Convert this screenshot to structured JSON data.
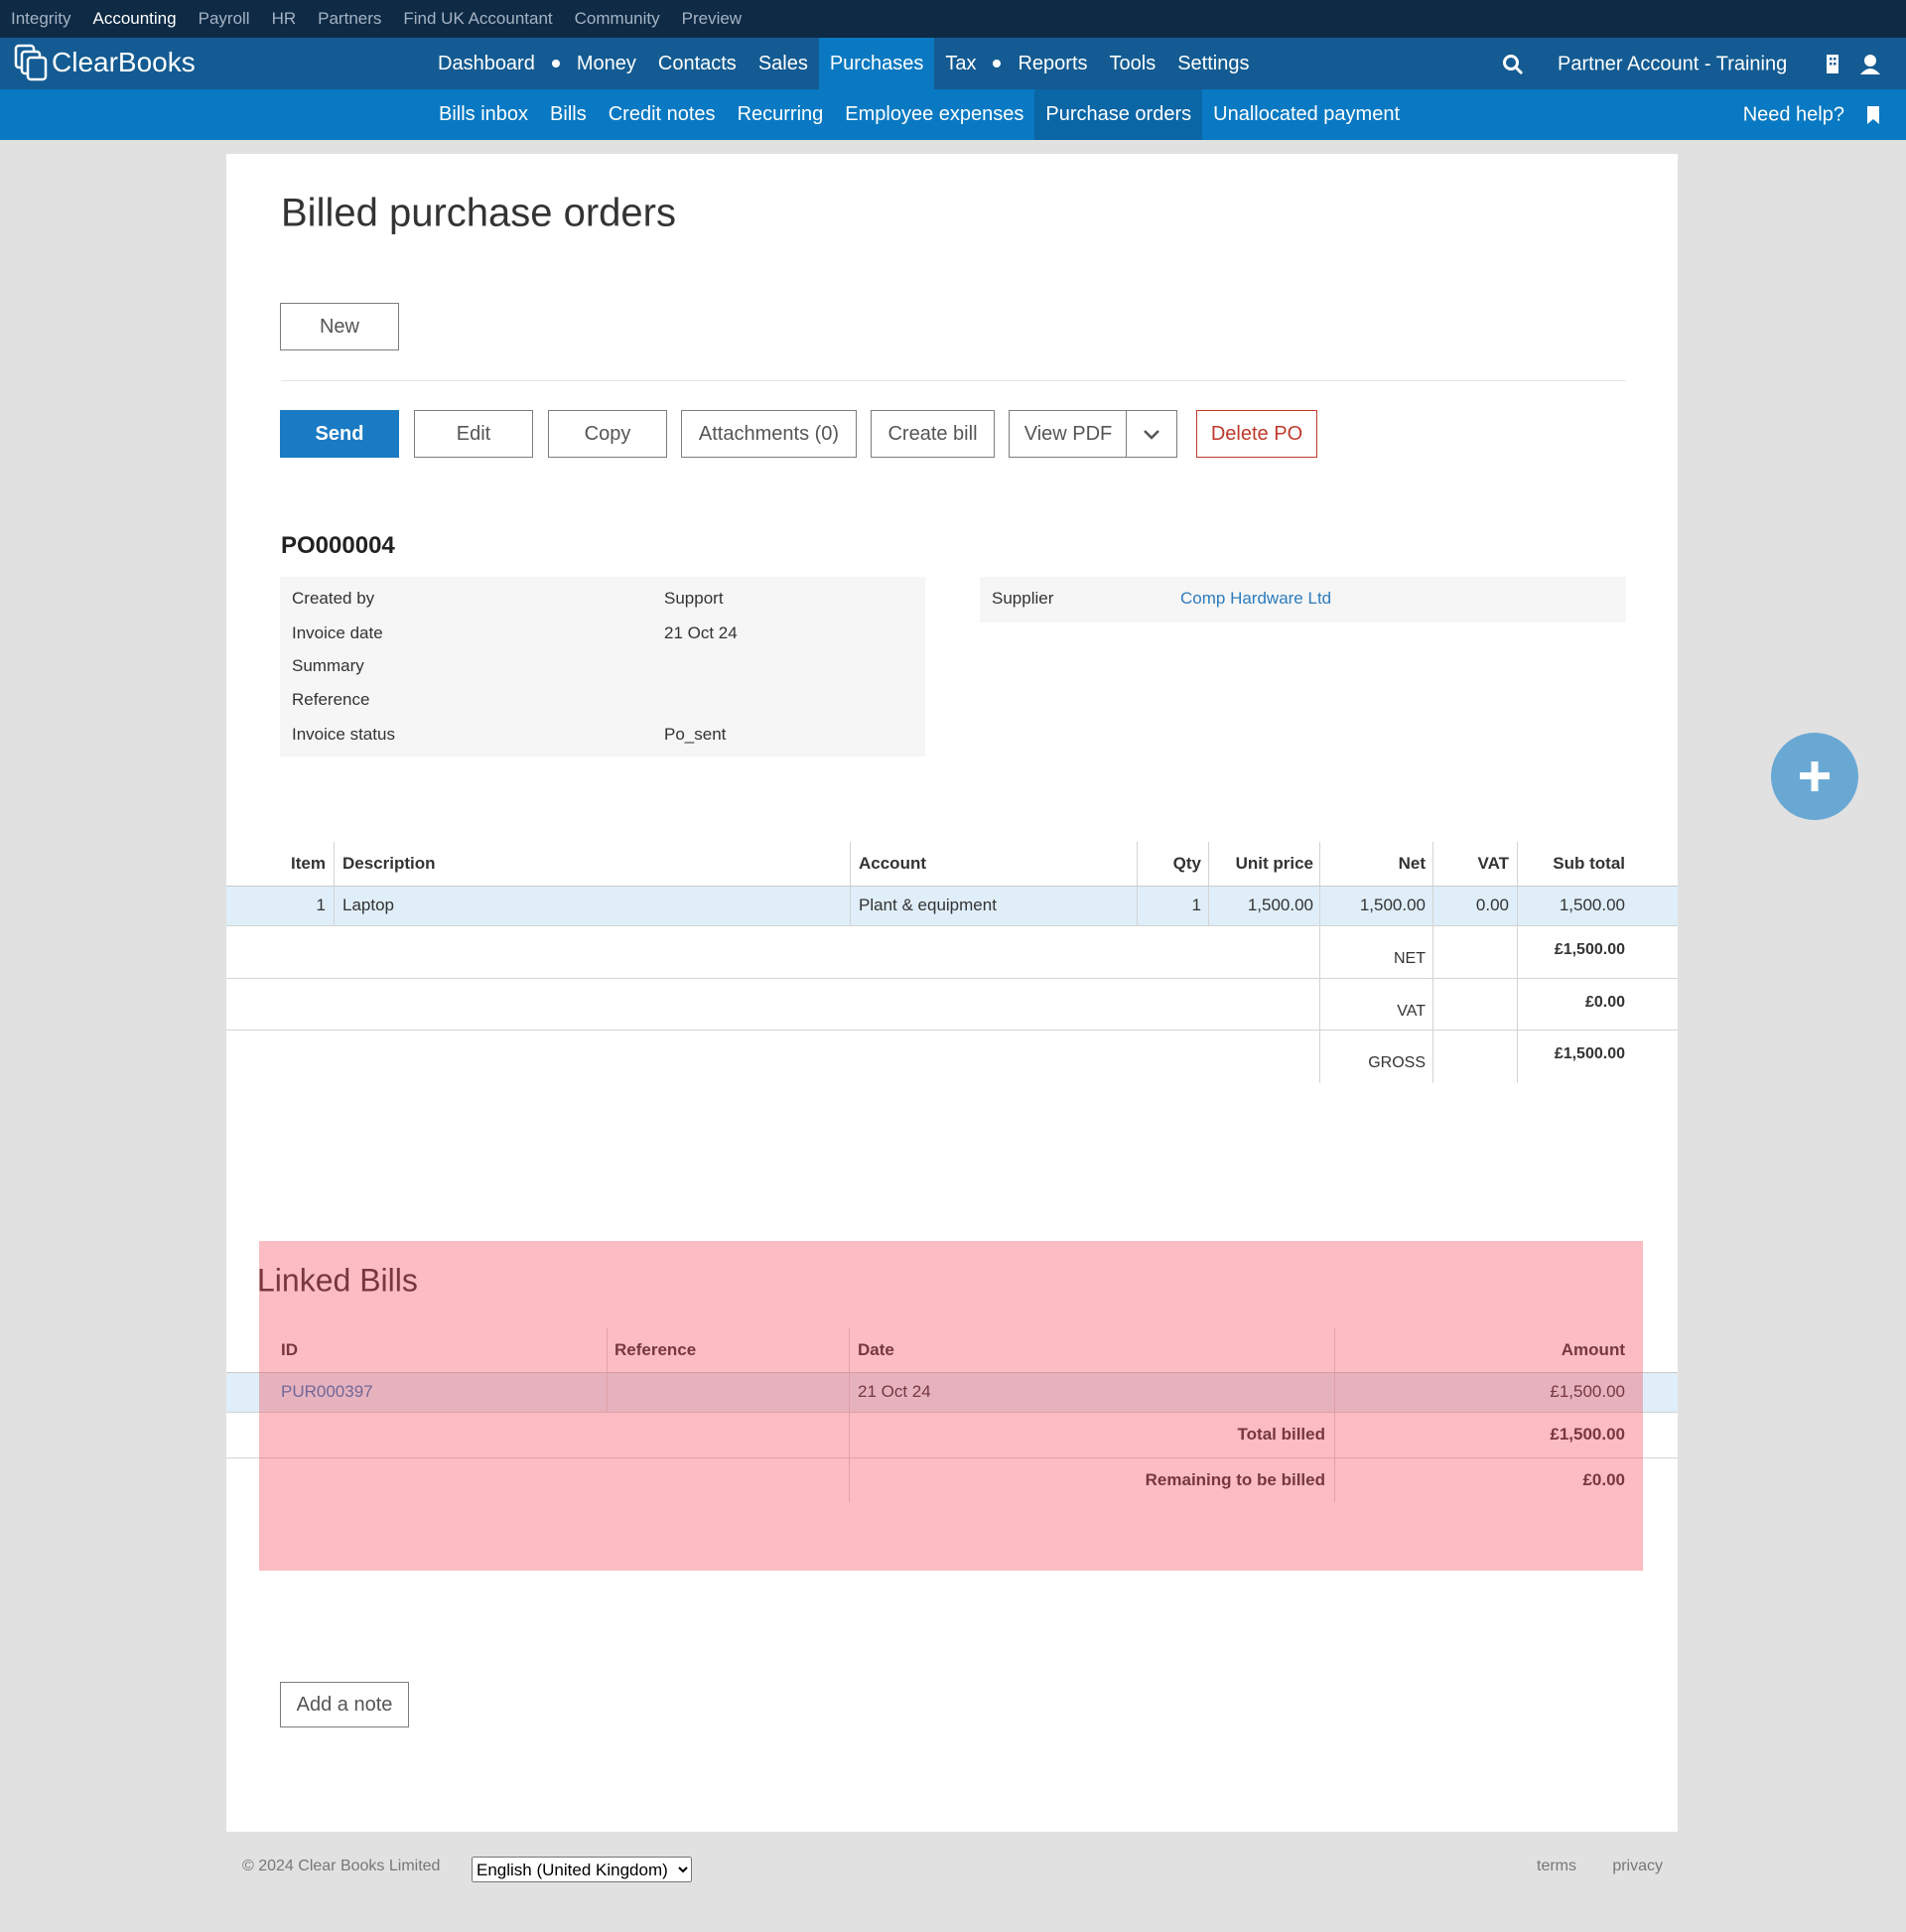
{
  "top_nav": [
    "Integrity",
    "Accounting",
    "Payroll",
    "HR",
    "Partners",
    "Find UK Accountant",
    "Community",
    "Preview"
  ],
  "brand": "ClearBooks",
  "main_nav": [
    "Dashboard",
    "Money",
    "Contacts",
    "Sales",
    "Purchases",
    "Tax",
    "Reports",
    "Tools",
    "Settings"
  ],
  "account": "Partner Account - Training",
  "sub_nav": [
    "Bills inbox",
    "Bills",
    "Credit notes",
    "Recurring",
    "Employee expenses",
    "Purchase orders",
    "Unallocated payment"
  ],
  "help": "Need help?",
  "page": {
    "title": "Billed purchase orders",
    "new_button": "New",
    "actions": [
      "Send",
      "Edit",
      "Copy",
      "Attachments (0)",
      "Create bill",
      "View PDF",
      "Delete PO"
    ]
  },
  "po": {
    "number": "PO000004",
    "details": [
      {
        "label": "Created by",
        "value": "Support"
      },
      {
        "label": "Invoice date",
        "value": "21 Oct 24"
      },
      {
        "label": "Summary"
      },
      {
        "label": "Reference"
      },
      {
        "label": "Invoice status",
        "value": "Po_sent"
      }
    ],
    "supplier": {
      "label": "Supplier",
      "value": "Comp Hardware Ltd"
    }
  },
  "items": {
    "headers": [
      "Item",
      "Description",
      "Account",
      "Qty",
      "Unit price",
      "Net",
      "VAT",
      "Sub total"
    ],
    "rows": [
      [
        "1",
        "Laptop",
        "Plant & equipment",
        "1",
        "1,500.00",
        "1,500.00",
        "0.00",
        "1,500.00"
      ]
    ],
    "totals": [
      {
        "label": "NET",
        "value": "£1,500.00"
      },
      {
        "label": "VAT",
        "value": "£0.00"
      },
      {
        "label": "GROSS",
        "value": "£1,500.00"
      }
    ]
  },
  "linked_bills": {
    "title": "Linked Bills",
    "headers": [
      "ID",
      "Reference",
      "Date",
      "Amount"
    ],
    "rows": [
      {
        "id": "PUR000397",
        "date": "21 Oct 24",
        "amount": "£1,500.00"
      }
    ],
    "totals": [
      {
        "label": "Total billed",
        "value": "£1,500.00"
      },
      {
        "label": "Remaining to be billed",
        "value": "£0.00"
      }
    ]
  },
  "add_note": "Add a note",
  "footer": {
    "copyright": "© 2024 Clear Books Limited",
    "language": "English (United Kingdom)",
    "links": [
      "terms",
      "privacy"
    ]
  }
}
